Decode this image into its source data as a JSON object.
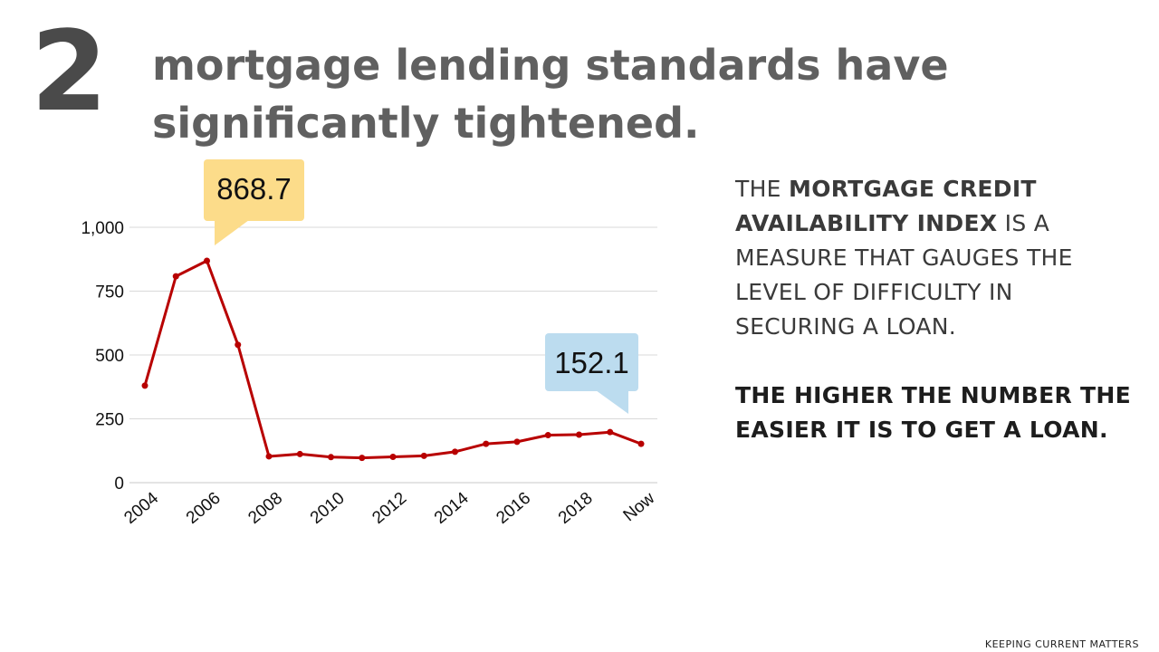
{
  "slide": {
    "number": "2",
    "headline": "mortgage lending standards have significantly tightened.",
    "footer": "KEEPING CURRENT MATTERS"
  },
  "description": {
    "p1": {
      "pre": "THE ",
      "bold": "MORTGAGE CREDIT AVAILABILITY INDEX",
      "post": " IS A MEASURE THAT GAUGES THE LEVEL OF DIFFICULTY IN SECURING A LOAN."
    },
    "p2": "THE HIGHER THE NUMBER THE EASIER IT IS TO GET A LOAN."
  },
  "colors": {
    "line": "#b80000",
    "grid": "#d9d9d9",
    "peak_callout": "#fcdc8a",
    "now_callout": "#bcdcef"
  },
  "chart_data": {
    "type": "line",
    "title": "",
    "xlabel": "",
    "ylabel": "",
    "ylim": [
      0,
      1000
    ],
    "y_ticks": [
      0,
      250,
      500,
      750,
      1000
    ],
    "y_tick_labels": [
      "0",
      "250",
      "500",
      "750",
      "1,000"
    ],
    "x_tick_labels": [
      "2004",
      "2006",
      "2008",
      "2010",
      "2012",
      "2014",
      "2016",
      "2018",
      "Now"
    ],
    "grid": true,
    "legend": "none",
    "x": [
      "2004",
      "2005",
      "2006",
      "2007",
      "2008",
      "2009",
      "2010",
      "2011",
      "2012",
      "2013",
      "2014",
      "2015",
      "2016",
      "2017",
      "2018",
      "2019",
      "Now"
    ],
    "series": [
      {
        "values": [
          380,
          808,
          868.7,
          540,
          103,
          112,
          100,
          97,
          101,
          105,
          121,
          152,
          160,
          186,
          188,
          198,
          152.1
        ]
      }
    ],
    "annotations": [
      {
        "label": "868.7",
        "x": "2006",
        "y": 868.7
      },
      {
        "label": "152.1",
        "x": "Now",
        "y": 152.1
      }
    ]
  }
}
